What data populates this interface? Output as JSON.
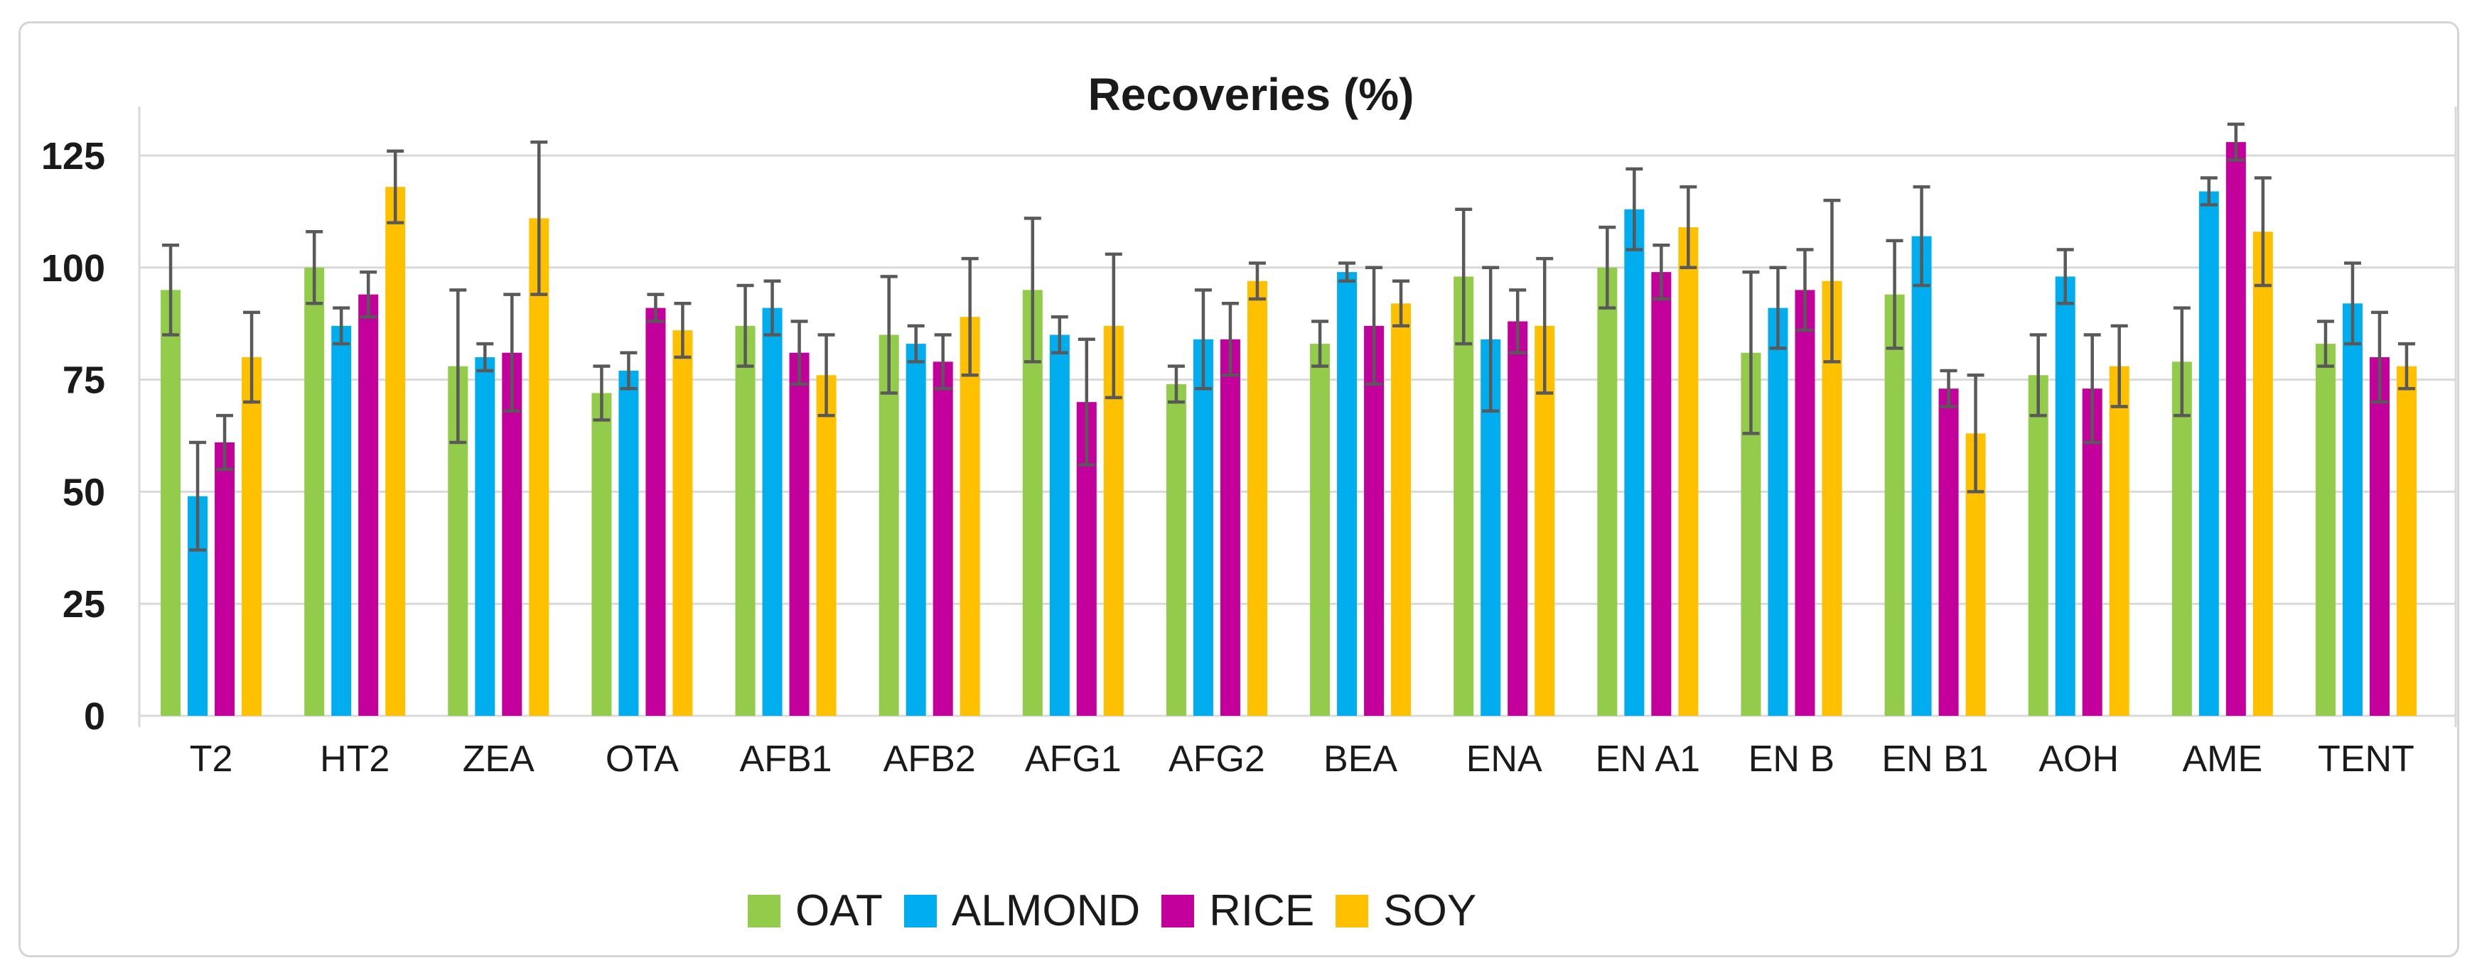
{
  "chart_data": {
    "type": "bar",
    "title": "Recoveries (%)",
    "categories": [
      "T2",
      "HT2",
      "ZEA",
      "OTA",
      "AFB1",
      "AFB2",
      "AFG1",
      "AFG2",
      "BEA",
      "ENA",
      "EN A1",
      "EN B",
      "EN B1",
      "AOH",
      "AME",
      "TENT"
    ],
    "series": [
      {
        "name": "OAT",
        "color": "#92CC4A",
        "values": [
          95,
          100,
          78,
          72,
          87,
          85,
          95,
          74,
          83,
          98,
          100,
          81,
          94,
          76,
          79,
          83
        ],
        "errors": [
          10,
          8,
          17,
          6,
          9,
          13,
          16,
          4,
          5,
          15,
          9,
          18,
          12,
          9,
          12,
          5
        ]
      },
      {
        "name": "ALMOND",
        "color": "#00AEEF",
        "values": [
          49,
          87,
          80,
          77,
          91,
          83,
          85,
          84,
          99,
          84,
          113,
          91,
          107,
          98,
          117,
          92
        ],
        "errors": [
          12,
          4,
          3,
          4,
          6,
          4,
          4,
          11,
          2,
          16,
          9,
          9,
          11,
          6,
          3,
          9
        ]
      },
      {
        "name": "RICE",
        "color": "#C4009C",
        "values": [
          61,
          94,
          81,
          91,
          81,
          79,
          70,
          84,
          87,
          88,
          99,
          95,
          73,
          73,
          128,
          80
        ],
        "errors": [
          6,
          5,
          13,
          3,
          7,
          6,
          14,
          8,
          13,
          7,
          6,
          9,
          4,
          12,
          4,
          10
        ]
      },
      {
        "name": "SOY",
        "color": "#FFC000",
        "values": [
          80,
          118,
          111,
          86,
          76,
          89,
          87,
          97,
          92,
          87,
          109,
          97,
          63,
          78,
          108,
          78
        ],
        "errors": [
          10,
          8,
          17,
          6,
          9,
          13,
          16,
          4,
          5,
          15,
          9,
          18,
          13,
          9,
          12,
          5
        ]
      }
    ],
    "yticks": [
      0,
      25,
      50,
      75,
      100,
      125
    ],
    "ylim": [
      0,
      135
    ],
    "xlabel": "",
    "ylabel": "",
    "grid": true,
    "legend_position": "bottom",
    "error_bar_color": "#595959",
    "gridline_color": "#d9d9d9",
    "axis_text_color": "#1a1a1a"
  }
}
